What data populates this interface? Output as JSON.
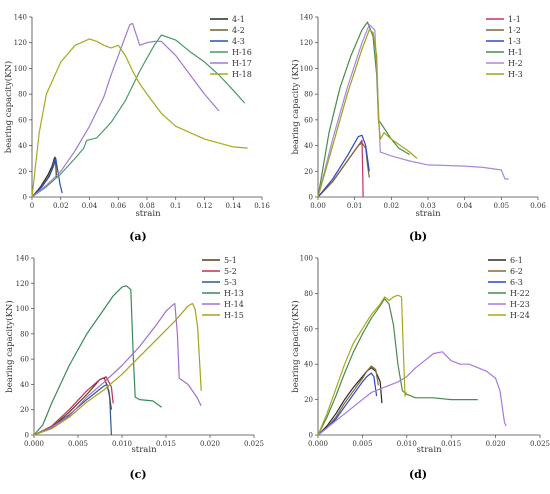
{
  "panels": [
    {
      "label": "(a)",
      "chart_data": {
        "type": "line",
        "xlabel": "strain",
        "ylabel": "bearing capacity(KN)",
        "xlim": [
          0,
          0.16
        ],
        "ylim": [
          0,
          140
        ],
        "xticks": [
          "0",
          "0.02",
          "0.04",
          "0.06",
          "0.08",
          "0.1",
          "0.12",
          "0.14",
          "0.16"
        ],
        "yticks": [
          "0",
          "20",
          "40",
          "60",
          "80",
          "100",
          "120",
          "140"
        ],
        "legend_position": "top-right",
        "series": [
          {
            "name": "4-1",
            "color": "#2b2b2b",
            "x": [
              0,
              0.006,
              0.011,
              0.014,
              0.0155,
              0.016,
              0.0165,
              0.017
            ],
            "y": [
              0,
              8,
              17,
              24,
              30,
              31,
              26,
              15
            ]
          },
          {
            "name": "4-2",
            "color": "#7a5c2e",
            "x": [
              0,
              0.006,
              0.011,
              0.014,
              0.0155,
              0.0165,
              0.017
            ],
            "y": [
              0,
              7,
              15,
              22,
              28,
              30,
              18
            ]
          },
          {
            "name": "4-3",
            "color": "#2a4fb5",
            "x": [
              0,
              0.007,
              0.012,
              0.015,
              0.0165,
              0.018,
              0.0195,
              0.021
            ],
            "y": [
              0,
              8,
              16,
              24,
              30,
              20,
              10,
              3
            ]
          },
          {
            "name": "H-16",
            "color": "#4a9a6a",
            "x": [
              0,
              0.01,
              0.02,
              0.03,
              0.036,
              0.038,
              0.045,
              0.055,
              0.065,
              0.075,
              0.085,
              0.09,
              0.1,
              0.11,
              0.12,
              0.13,
              0.14,
              0.148
            ],
            "y": [
              0,
              8,
              18,
              30,
              38,
              44,
              46,
              58,
              75,
              98,
              118,
              126,
              122,
              113,
              105,
              95,
              83,
              73
            ]
          },
          {
            "name": "H-17",
            "color": "#a07ad0",
            "x": [
              0,
              0.01,
              0.02,
              0.03,
              0.04,
              0.05,
              0.055,
              0.06,
              0.065,
              0.068,
              0.07,
              0.072,
              0.075,
              0.08,
              0.085,
              0.09,
              0.1,
              0.11,
              0.12,
              0.13
            ],
            "y": [
              0,
              9,
              20,
              36,
              55,
              78,
              95,
              110,
              125,
              134,
              135,
              128,
              118,
              120,
              121,
              121,
              110,
              95,
              80,
              67
            ]
          },
          {
            "name": "H-18",
            "color": "#a8a820",
            "x": [
              0,
              0.005,
              0.01,
              0.02,
              0.03,
              0.04,
              0.045,
              0.05,
              0.055,
              0.06,
              0.065,
              0.07,
              0.075,
              0.08,
              0.09,
              0.1,
              0.12,
              0.14,
              0.15
            ],
            "y": [
              0,
              50,
              80,
              105,
              118,
              123,
              121,
              118,
              116,
              118,
              110,
              98,
              88,
              80,
              65,
              55,
              45,
              39,
              38
            ]
          }
        ]
      }
    },
    {
      "label": "(b)",
      "chart_data": {
        "type": "line",
        "xlabel": "strain",
        "ylabel": "bearing capacity (KN)",
        "xlim": [
          0,
          0.06
        ],
        "ylim": [
          0,
          140
        ],
        "xticks": [
          "0.00",
          "0.01",
          "0.02",
          "0.03",
          "0.04",
          "0.05",
          "0.06"
        ],
        "yticks": [
          "0",
          "20",
          "40",
          "60",
          "80",
          "100",
          "120",
          "140"
        ],
        "legend_position": "top-right",
        "series": [
          {
            "name": "1-1",
            "color": "#c0306a",
            "x": [
              0,
              0.004,
              0.008,
              0.0115,
              0.012,
              0.0122,
              0.0123
            ],
            "y": [
              0,
              12,
              28,
              42,
              44,
              20,
              0
            ]
          },
          {
            "name": "1-2",
            "color": "#7a6a3a",
            "x": [
              0,
              0.004,
              0.008,
              0.011,
              0.012,
              0.013,
              0.0135,
              0.014
            ],
            "y": [
              0,
              12,
              28,
              40,
              42,
              38,
              25,
              15
            ]
          },
          {
            "name": "1-3",
            "color": "#3048c0",
            "x": [
              0,
              0.004,
              0.008,
              0.011,
              0.012,
              0.013,
              0.0135,
              0.014
            ],
            "y": [
              0,
              14,
              32,
              47,
              48,
              40,
              30,
              20
            ]
          },
          {
            "name": "H-1",
            "color": "#4a8a4a",
            "x": [
              0,
              0.003,
              0.006,
              0.009,
              0.012,
              0.0135,
              0.015,
              0.016,
              0.0165,
              0.017,
              0.02,
              0.022,
              0.025
            ],
            "y": [
              0,
              50,
              85,
              110,
              130,
              136,
              125,
              95,
              60,
              58,
              45,
              38,
              33
            ]
          },
          {
            "name": "H-2",
            "color": "#a888d8",
            "x": [
              0,
              0.004,
              0.008,
              0.012,
              0.014,
              0.0155,
              0.016,
              0.017,
              0.02,
              0.025,
              0.03,
              0.04,
              0.045,
              0.05,
              0.051,
              0.052
            ],
            "y": [
              0,
              45,
              85,
              120,
              134,
              130,
              100,
              35,
              32,
              28,
              25,
              24,
              23,
              21,
              14,
              14
            ]
          },
          {
            "name": "H-3",
            "color": "#a0a020",
            "x": [
              0,
              0.004,
              0.008,
              0.012,
              0.014,
              0.015,
              0.016,
              0.0165,
              0.017,
              0.018,
              0.02,
              0.025,
              0.027
            ],
            "y": [
              0,
              40,
              80,
              115,
              130,
              128,
              110,
              60,
              45,
              50,
              45,
              35,
              30
            ]
          }
        ]
      }
    },
    {
      "label": "(c)",
      "chart_data": {
        "type": "line",
        "xlabel": "strain",
        "ylabel": "bearing capacity(KN)",
        "xlim": [
          0,
          0.025
        ],
        "ylim": [
          0,
          140
        ],
        "xticks": [
          "0.000",
          "0.005",
          "0.010",
          "0.015",
          "0.020",
          "0.025"
        ],
        "yticks": [
          "0",
          "20",
          "40",
          "60",
          "80",
          "100",
          "120",
          "140"
        ],
        "legend_position": "top-right",
        "series": [
          {
            "name": "5-1",
            "color": "#5a3a1a",
            "x": [
              0,
              0.002,
              0.004,
              0.006,
              0.0075,
              0.008,
              0.0085,
              0.0088
            ],
            "y": [
              0,
              6,
              18,
              32,
              44,
              45,
              35,
              20
            ]
          },
          {
            "name": "5-2",
            "color": "#c03050",
            "x": [
              0,
              0.002,
              0.004,
              0.006,
              0.0075,
              0.0082,
              0.0088,
              0.009
            ],
            "y": [
              0,
              7,
              20,
              35,
              44,
              46,
              38,
              25
            ]
          },
          {
            "name": "5-3",
            "color": "#2a5a90",
            "x": [
              0,
              0.002,
              0.004,
              0.006,
              0.0078,
              0.0083,
              0.0086,
              0.0088
            ],
            "y": [
              0,
              6,
              16,
              28,
              38,
              40,
              30,
              0
            ]
          },
          {
            "name": "H-13",
            "color": "#3a8a5a",
            "x": [
              0,
              0.001,
              0.002,
              0.004,
              0.006,
              0.008,
              0.009,
              0.01,
              0.0105,
              0.011,
              0.0113,
              0.0115,
              0.012,
              0.0135,
              0.0145
            ],
            "y": [
              0,
              8,
              25,
              55,
              80,
              100,
              110,
              117,
              118,
              115,
              60,
              30,
              28,
              27,
              22
            ]
          },
          {
            "name": "H-14",
            "color": "#a070d0",
            "x": [
              0,
              0.002,
              0.004,
              0.006,
              0.008,
              0.01,
              0.012,
              0.014,
              0.015,
              0.0158,
              0.016,
              0.0163,
              0.0165,
              0.0175,
              0.0185,
              0.019
            ],
            "y": [
              0,
              6,
              15,
              30,
              42,
              55,
              70,
              88,
              98,
              103,
              104,
              80,
              45,
              40,
              30,
              23
            ]
          },
          {
            "name": "H-15",
            "color": "#a8a020",
            "x": [
              0,
              0.002,
              0.004,
              0.006,
              0.008,
              0.01,
              0.012,
              0.014,
              0.016,
              0.0175,
              0.018,
              0.0183,
              0.0186,
              0.019
            ],
            "y": [
              0,
              5,
              14,
              26,
              36,
              48,
              62,
              76,
              90,
              102,
              104,
              100,
              85,
              35
            ]
          }
        ]
      }
    },
    {
      "label": "(d)",
      "chart_data": {
        "type": "line",
        "xlabel": "strain",
        "ylabel": "bearing capacity(KN)",
        "xlim": [
          0,
          0.025
        ],
        "ylim": [
          0,
          100
        ],
        "xticks": [
          "0.000",
          "0.005",
          "0.010",
          "0.015",
          "0.020",
          "0.025"
        ],
        "yticks": [
          "0",
          "20",
          "40",
          "60",
          "80",
          "100"
        ],
        "legend_position": "top-right",
        "series": [
          {
            "name": "6-1",
            "color": "#2a2a2a",
            "x": [
              0,
              0.001,
              0.002,
              0.003,
              0.004,
              0.005,
              0.0055,
              0.006,
              0.0065,
              0.007,
              0.0072
            ],
            "y": [
              0,
              5,
              12,
              20,
              27,
              33,
              36,
              38,
              36,
              30,
              18
            ]
          },
          {
            "name": "6-2",
            "color": "#8a6a30",
            "x": [
              0,
              0.001,
              0.002,
              0.003,
              0.004,
              0.005,
              0.0055,
              0.006,
              0.0065,
              0.0068
            ],
            "y": [
              0,
              4,
              10,
              18,
              25,
              32,
              36,
              39,
              37,
              28
            ]
          },
          {
            "name": "6-3",
            "color": "#2a48c0",
            "x": [
              0,
              0.001,
              0.002,
              0.003,
              0.004,
              0.005,
              0.0055,
              0.006,
              0.0063,
              0.0066
            ],
            "y": [
              0,
              4,
              9,
              16,
              23,
              30,
              33,
              35,
              33,
              22
            ]
          },
          {
            "name": "H-22",
            "color": "#4a8a4a",
            "x": [
              0,
              0.001,
              0.002,
              0.003,
              0.004,
              0.005,
              0.006,
              0.007,
              0.0075,
              0.008,
              0.0085,
              0.009,
              0.0095,
              0.01,
              0.011,
              0.013,
              0.015,
              0.017,
              0.018
            ],
            "y": [
              0,
              10,
              22,
              35,
              47,
              57,
              66,
              73,
              77,
              74,
              62,
              40,
              25,
              23,
              21,
              21,
              20,
              20,
              20
            ]
          },
          {
            "name": "H-23",
            "color": "#a878e0",
            "x": [
              0,
              0.002,
              0.004,
              0.006,
              0.008,
              0.009,
              0.01,
              0.011,
              0.012,
              0.013,
              0.014,
              0.015,
              0.016,
              0.017,
              0.018,
              0.019,
              0.02,
              0.0205,
              0.021,
              0.0212
            ],
            "y": [
              0,
              8,
              16,
              24,
              28,
              30,
              33,
              38,
              42,
              46,
              47,
              42,
              40,
              40,
              38,
              36,
              32,
              25,
              7,
              5
            ]
          },
          {
            "name": "H-24",
            "color": "#a8a820",
            "x": [
              0,
              0.001,
              0.002,
              0.003,
              0.004,
              0.005,
              0.006,
              0.007,
              0.0075,
              0.008,
              0.0085,
              0.009,
              0.0094,
              0.0096,
              0.0098,
              0.01
            ],
            "y": [
              0,
              12,
              26,
              40,
              52,
              60,
              68,
              74,
              78,
              76,
              78,
              79,
              78,
              50,
              22,
              24
            ]
          }
        ]
      }
    }
  ]
}
